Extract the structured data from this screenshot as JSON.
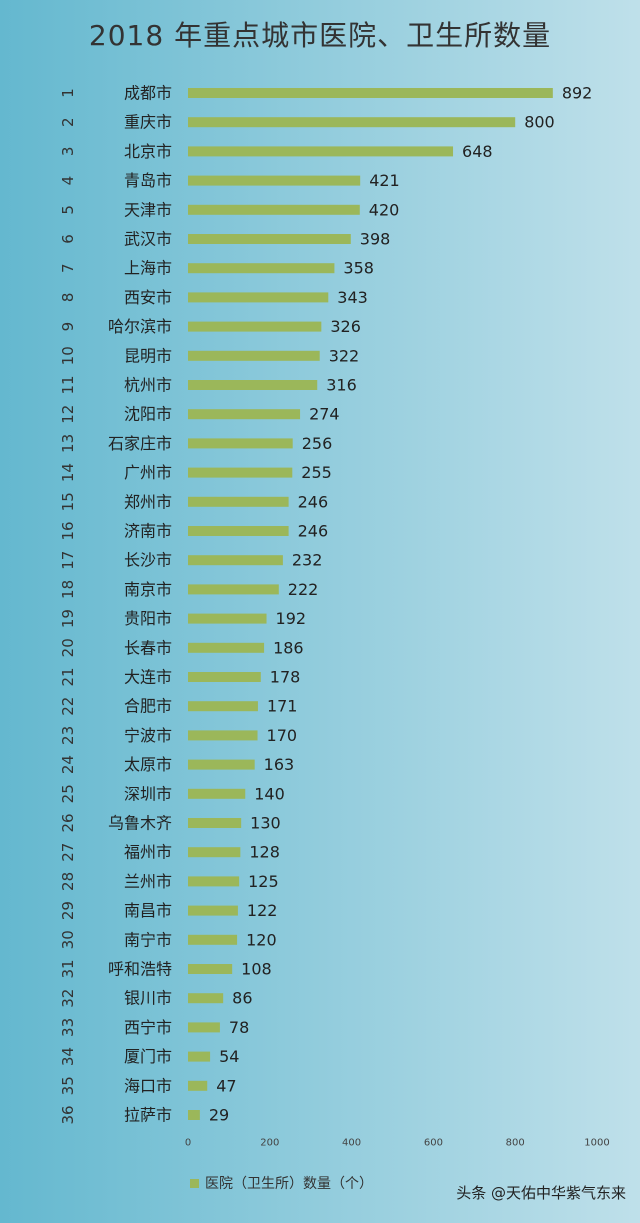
{
  "title": "2018 年重点城市医院、卫生所数量",
  "legend_label": "医院（卫生所）数量（个）",
  "watermark": "头条 @天佑中华紫气东来",
  "colors": {
    "bar": "#9bb75a"
  },
  "chart_data": {
    "type": "bar",
    "orientation": "horizontal",
    "title": "2018 年重点城市医院、卫生所数量",
    "ranks": [
      "1",
      "2",
      "3",
      "4",
      "5",
      "6",
      "7",
      "8",
      "9",
      "10",
      "11",
      "12",
      "13",
      "14",
      "15",
      "16",
      "17",
      "18",
      "19",
      "20",
      "21",
      "22",
      "23",
      "24",
      "25",
      "26",
      "27",
      "28",
      "29",
      "30",
      "31",
      "32",
      "33",
      "34",
      "35",
      "36"
    ],
    "categories": [
      "成都市",
      "重庆市",
      "北京市",
      "青岛市",
      "天津市",
      "武汉市",
      "上海市",
      "西安市",
      "哈尔滨市",
      "昆明市",
      "杭州市",
      "沈阳市",
      "石家庄市",
      "广州市",
      "郑州市",
      "济南市",
      "长沙市",
      "南京市",
      "贵阳市",
      "长春市",
      "大连市",
      "合肥市",
      "宁波市",
      "太原市",
      "深圳市",
      "乌鲁木齐",
      "福州市",
      "兰州市",
      "南昌市",
      "南宁市",
      "呼和浩特",
      "银川市",
      "西宁市",
      "厦门市",
      "海口市",
      "拉萨市"
    ],
    "series": [
      {
        "name": "医院（卫生所）数量（个）",
        "values": [
          892,
          800,
          648,
          421,
          420,
          398,
          358,
          343,
          326,
          322,
          316,
          274,
          256,
          255,
          246,
          246,
          232,
          222,
          192,
          186,
          178,
          171,
          170,
          163,
          140,
          130,
          128,
          125,
          122,
          120,
          108,
          86,
          78,
          54,
          47,
          29
        ]
      }
    ],
    "xlim": [
      0,
      1000
    ],
    "xticks": [
      0,
      200,
      400,
      600,
      800,
      1000
    ],
    "legend_position": "bottom",
    "grid": false
  }
}
